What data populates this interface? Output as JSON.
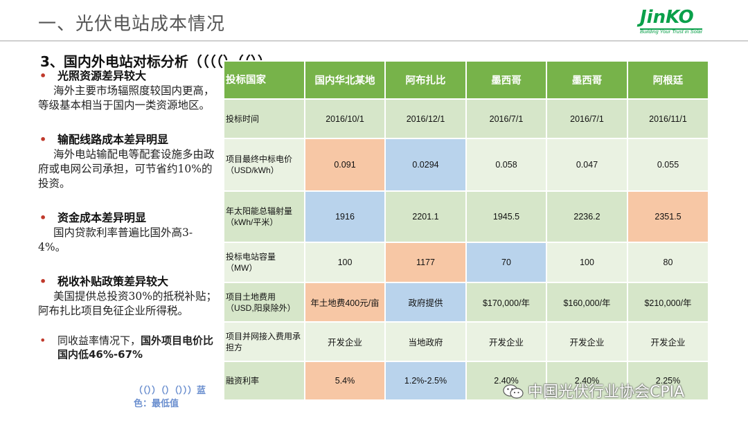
{
  "title": "一、光伏电站成本情况",
  "logo": {
    "name": "JinKO",
    "tagline": "Building Your Trust in Solar"
  },
  "section_title": "3、国内外电站对标分析（（（（）（（））",
  "bullets": [
    {
      "head": "光照资源差异较大",
      "body": "海外主要市场辐照度较国内更高，等级基本相当于国内一类资源地区。"
    },
    {
      "head": "输配线路成本差异明显",
      "body": "海外电站输配电等配套设施多由政府或电网公司承担，可节省约10%的投资。"
    },
    {
      "head": "资金成本差异明显",
      "body": "国内贷款利率普遍比国外高3-4%。"
    },
    {
      "head": "税收补贴政策差异较大",
      "body": "美国提供总投资30%的抵税补贴；阿布扎比项目免征企业所得税。"
    }
  ],
  "bullet_last": {
    "prefix": "同收益率情况下，",
    "bold": "国外项目电价比国内低46%-67%"
  },
  "legend_note": "（（））（）（）））蓝色：最低值",
  "table": {
    "headers": [
      "投标国家",
      "国内华北某地",
      "阿布扎比",
      "墨西哥",
      "墨西哥",
      "阿根廷"
    ],
    "rows": [
      {
        "label": "投标时间",
        "cells": [
          "2016/10/1",
          "2016/12/1",
          "2016/7/1",
          "2016/7/1",
          "2016/11/1"
        ]
      },
      {
        "label": "项目最终中标电价（USD/kWh）",
        "cells": [
          "0.091",
          "0.0294",
          "0.058",
          "0.047",
          "0.055"
        ]
      },
      {
        "label": "年太阳能总辐射量（kWh/平米）",
        "cells": [
          "1916",
          "2201.1",
          "1945.5",
          "2236.2",
          "2351.5"
        ]
      },
      {
        "label": "投标电站容量（MW）",
        "cells": [
          "100",
          "1177",
          "70",
          "100",
          "80"
        ]
      },
      {
        "label": "项目土地费用（USD,阳泉除外）",
        "cells": [
          "年土地费400元/亩",
          "政府提供",
          "$170,000/年",
          "$160,000/年",
          "$210,000/年"
        ]
      },
      {
        "label": "项目并网接入费用承担方",
        "cells": [
          "开发企业",
          "当地政府",
          "开发企业",
          "开发企业",
          "开发企业"
        ]
      },
      {
        "label": "融资利率",
        "cells": [
          "5.4%",
          "1.2%-2.5%",
          "2.40%",
          "2.40%",
          "2.25%"
        ]
      }
    ],
    "highlight_colors": {
      "orange": "#f7c7a5",
      "blue": "#b9d3ec",
      "header": "#77b34a"
    }
  },
  "watermark": "中国光伏行业协会CPIA"
}
